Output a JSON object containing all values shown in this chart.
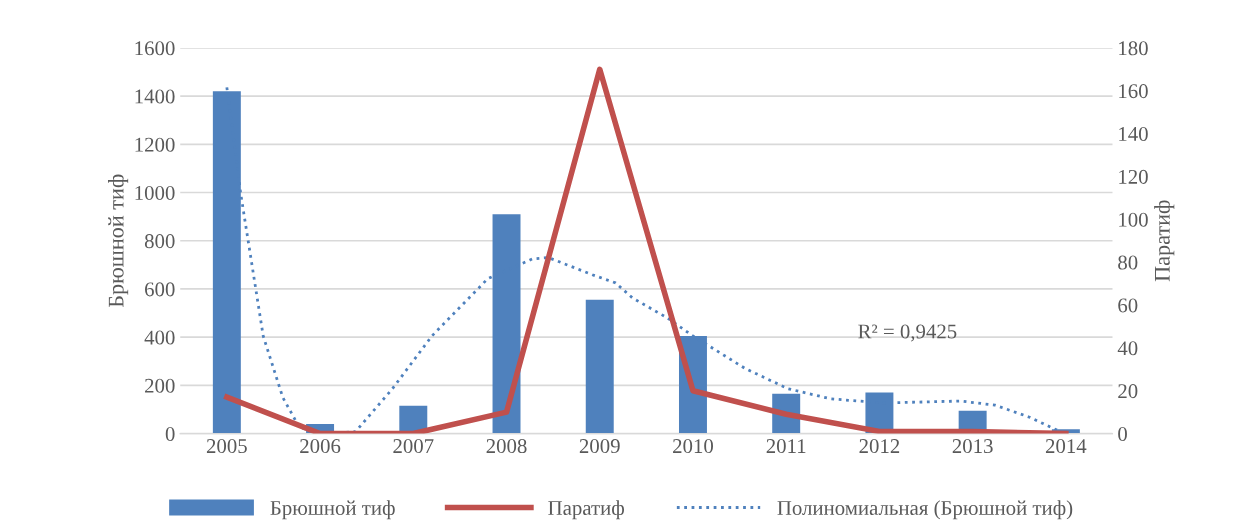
{
  "chart_data": {
    "type": "bar",
    "ylabel": "Брюшной тиф",
    "y2label": "Паратиф",
    "x": [
      2005,
      2006,
      2007,
      2008,
      2009,
      2010,
      2011,
      2012,
      2013,
      2014
    ],
    "xlim": [
      2004.5,
      2014.5
    ],
    "xticks": [
      2005,
      2006,
      2007,
      2008,
      2009,
      2010,
      2011,
      2012,
      2013,
      2014
    ],
    "ylim": [
      0,
      1600
    ],
    "yticks": [
      0,
      200,
      400,
      600,
      800,
      1000,
      1200,
      1400,
      1600
    ],
    "y2lim": [
      0,
      180
    ],
    "y2ticks": [
      0,
      20,
      40,
      60,
      80,
      100,
      120,
      140,
      160,
      180
    ],
    "grid": "y",
    "legend": "bottom",
    "series": [
      {
        "name": "Брюшной тиф",
        "color": "#4f81bd",
        "values": [
          1420,
          40,
          115,
          910,
          555,
          405,
          165,
          170,
          95,
          18
        ]
      },
      {
        "name": "Паратиф",
        "type": "line",
        "axis": "y2",
        "color": "#c0504d",
        "line_style": "solid",
        "values": [
          17,
          0,
          0,
          10,
          170,
          20,
          9,
          1,
          1,
          0
        ]
      },
      {
        "name": "Полиномиальная (Брюшной тиф)",
        "type": "line",
        "color": "#4f81bd",
        "line_style": "dotted",
        "x": [
          2005,
          2005.15,
          2005.39,
          2005.6,
          2005.78,
          2006.12,
          2006.38,
          2006.77,
          2007.2,
          2007.8,
          2008.28,
          2008.45,
          2008.92,
          2009.17,
          2009.35,
          2009.72,
          2010,
          2010.56,
          2011.02,
          2011.48,
          2012.04,
          2012.87,
          2013.24,
          2013.61,
          2013.94,
          2014
        ],
        "values": [
          1436,
          992,
          405,
          150,
          24,
          0,
          8,
          183,
          405,
          643,
          725,
          730,
          659,
          625,
          563,
          481,
          405,
          270,
          186,
          144,
          127,
          135,
          118,
          68,
          8,
          0
        ]
      }
    ],
    "annotations": [
      "R² = 0,9425"
    ]
  }
}
